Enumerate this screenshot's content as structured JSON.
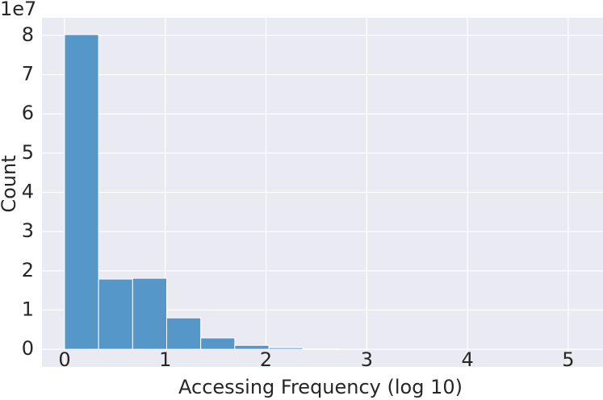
{
  "chart_data": {
    "type": "histogram",
    "x_label": "Accessing Frequency (log 10)",
    "y_label": "Count",
    "y_offset_label": "1e7",
    "bins": [
      0,
      0.338,
      0.676,
      1.014,
      1.352,
      1.69,
      2.028,
      2.366,
      2.704,
      3.042,
      3.38,
      3.718,
      4.056,
      4.394,
      4.732,
      5.07
    ],
    "counts": [
      80200000,
      17900000,
      18100000,
      8000000,
      2900000,
      1000000,
      400000,
      100000,
      30000,
      10000,
      5000,
      3000,
      2000,
      1000,
      500
    ],
    "color": "#5597c8",
    "xlim": [
      -0.224,
      5.345
    ],
    "ylim": [
      -4500000,
      84500000
    ],
    "xticks": [
      0,
      1,
      2,
      3,
      4,
      5
    ],
    "yticks": [
      {
        "value": 0,
        "label": "0"
      },
      {
        "value": 10000000,
        "label": "1"
      },
      {
        "value": 20000000,
        "label": "2"
      },
      {
        "value": 30000000,
        "label": "3"
      },
      {
        "value": 40000000,
        "label": "4"
      },
      {
        "value": 50000000,
        "label": "5"
      },
      {
        "value": 60000000,
        "label": "6"
      },
      {
        "value": 70000000,
        "label": "7"
      },
      {
        "value": 80000000,
        "label": "8"
      }
    ],
    "grid": true
  }
}
